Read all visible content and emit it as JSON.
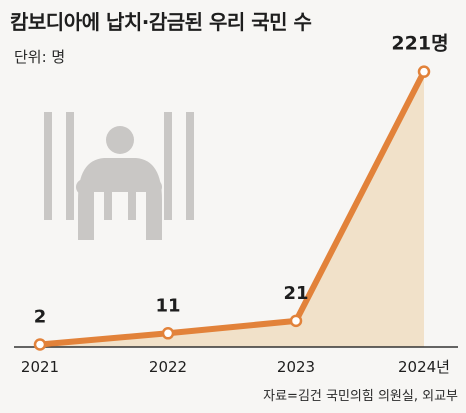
{
  "title": "캄보디아에 납치·감금된 우리 국민 수",
  "unit_label": "단위: 명",
  "source": "자료=김건 국민의힘 의원실, 외교부",
  "colors": {
    "line": "#e2823a",
    "area": "#f1e1c9",
    "prisoner": "#c9c7c5",
    "axis": "#333333"
  },
  "illustration": "prisoner-behind-bars-icon",
  "chart_data": {
    "type": "line",
    "categories": [
      "2021",
      "2022",
      "2023",
      "2024년"
    ],
    "values": [
      2,
      11,
      21,
      221
    ],
    "value_labels": [
      "2",
      "11",
      "21",
      "221명"
    ],
    "title": "캄보디아에 납치·감금된 우리 국민 수",
    "xlabel": "",
    "ylabel": "",
    "ylim": [
      0,
      240
    ],
    "grid": false,
    "legend": "none"
  }
}
